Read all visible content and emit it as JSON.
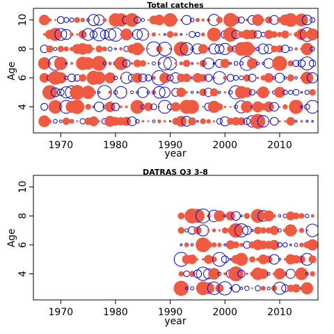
{
  "chart_data": [
    {
      "type": "scatter",
      "title": "Total catches",
      "xlabel": "year",
      "ylabel": "Age",
      "xlim": [
        1965,
        2017
      ],
      "ylim": [
        2.2,
        10.8
      ],
      "xticks": [
        1970,
        1980,
        1990,
        2000,
        2010
      ],
      "yticks": [
        4,
        6,
        8,
        10
      ],
      "years": [
        1967,
        2016
      ],
      "ages": [
        3,
        10
      ],
      "encoding": "bubble size = magnitude of residual; filled red = positive, open blue = negative",
      "series": [
        {
          "key": "pos",
          "color": "#f05a40",
          "fill": true
        },
        {
          "key": "neg",
          "color": "#0000ee",
          "fill": false
        }
      ],
      "seed": 17
    },
    {
      "type": "scatter",
      "title": "DATRAS Q3 3-8",
      "xlabel": "year",
      "ylabel": "Age",
      "xlim": [
        1965,
        2017
      ],
      "ylim": [
        2.2,
        10.8
      ],
      "xticks": [
        1970,
        1980,
        1990,
        2000,
        2010
      ],
      "yticks": [
        4,
        6,
        8,
        10
      ],
      "years": [
        1992,
        2016
      ],
      "ages": [
        3,
        8
      ],
      "encoding": "bubble size = magnitude of residual; filled red = positive, open blue = negative",
      "series": [
        {
          "key": "pos",
          "color": "#f05a40",
          "fill": true
        },
        {
          "key": "neg",
          "color": "#0000ee",
          "fill": false
        }
      ],
      "seed": 41
    }
  ]
}
